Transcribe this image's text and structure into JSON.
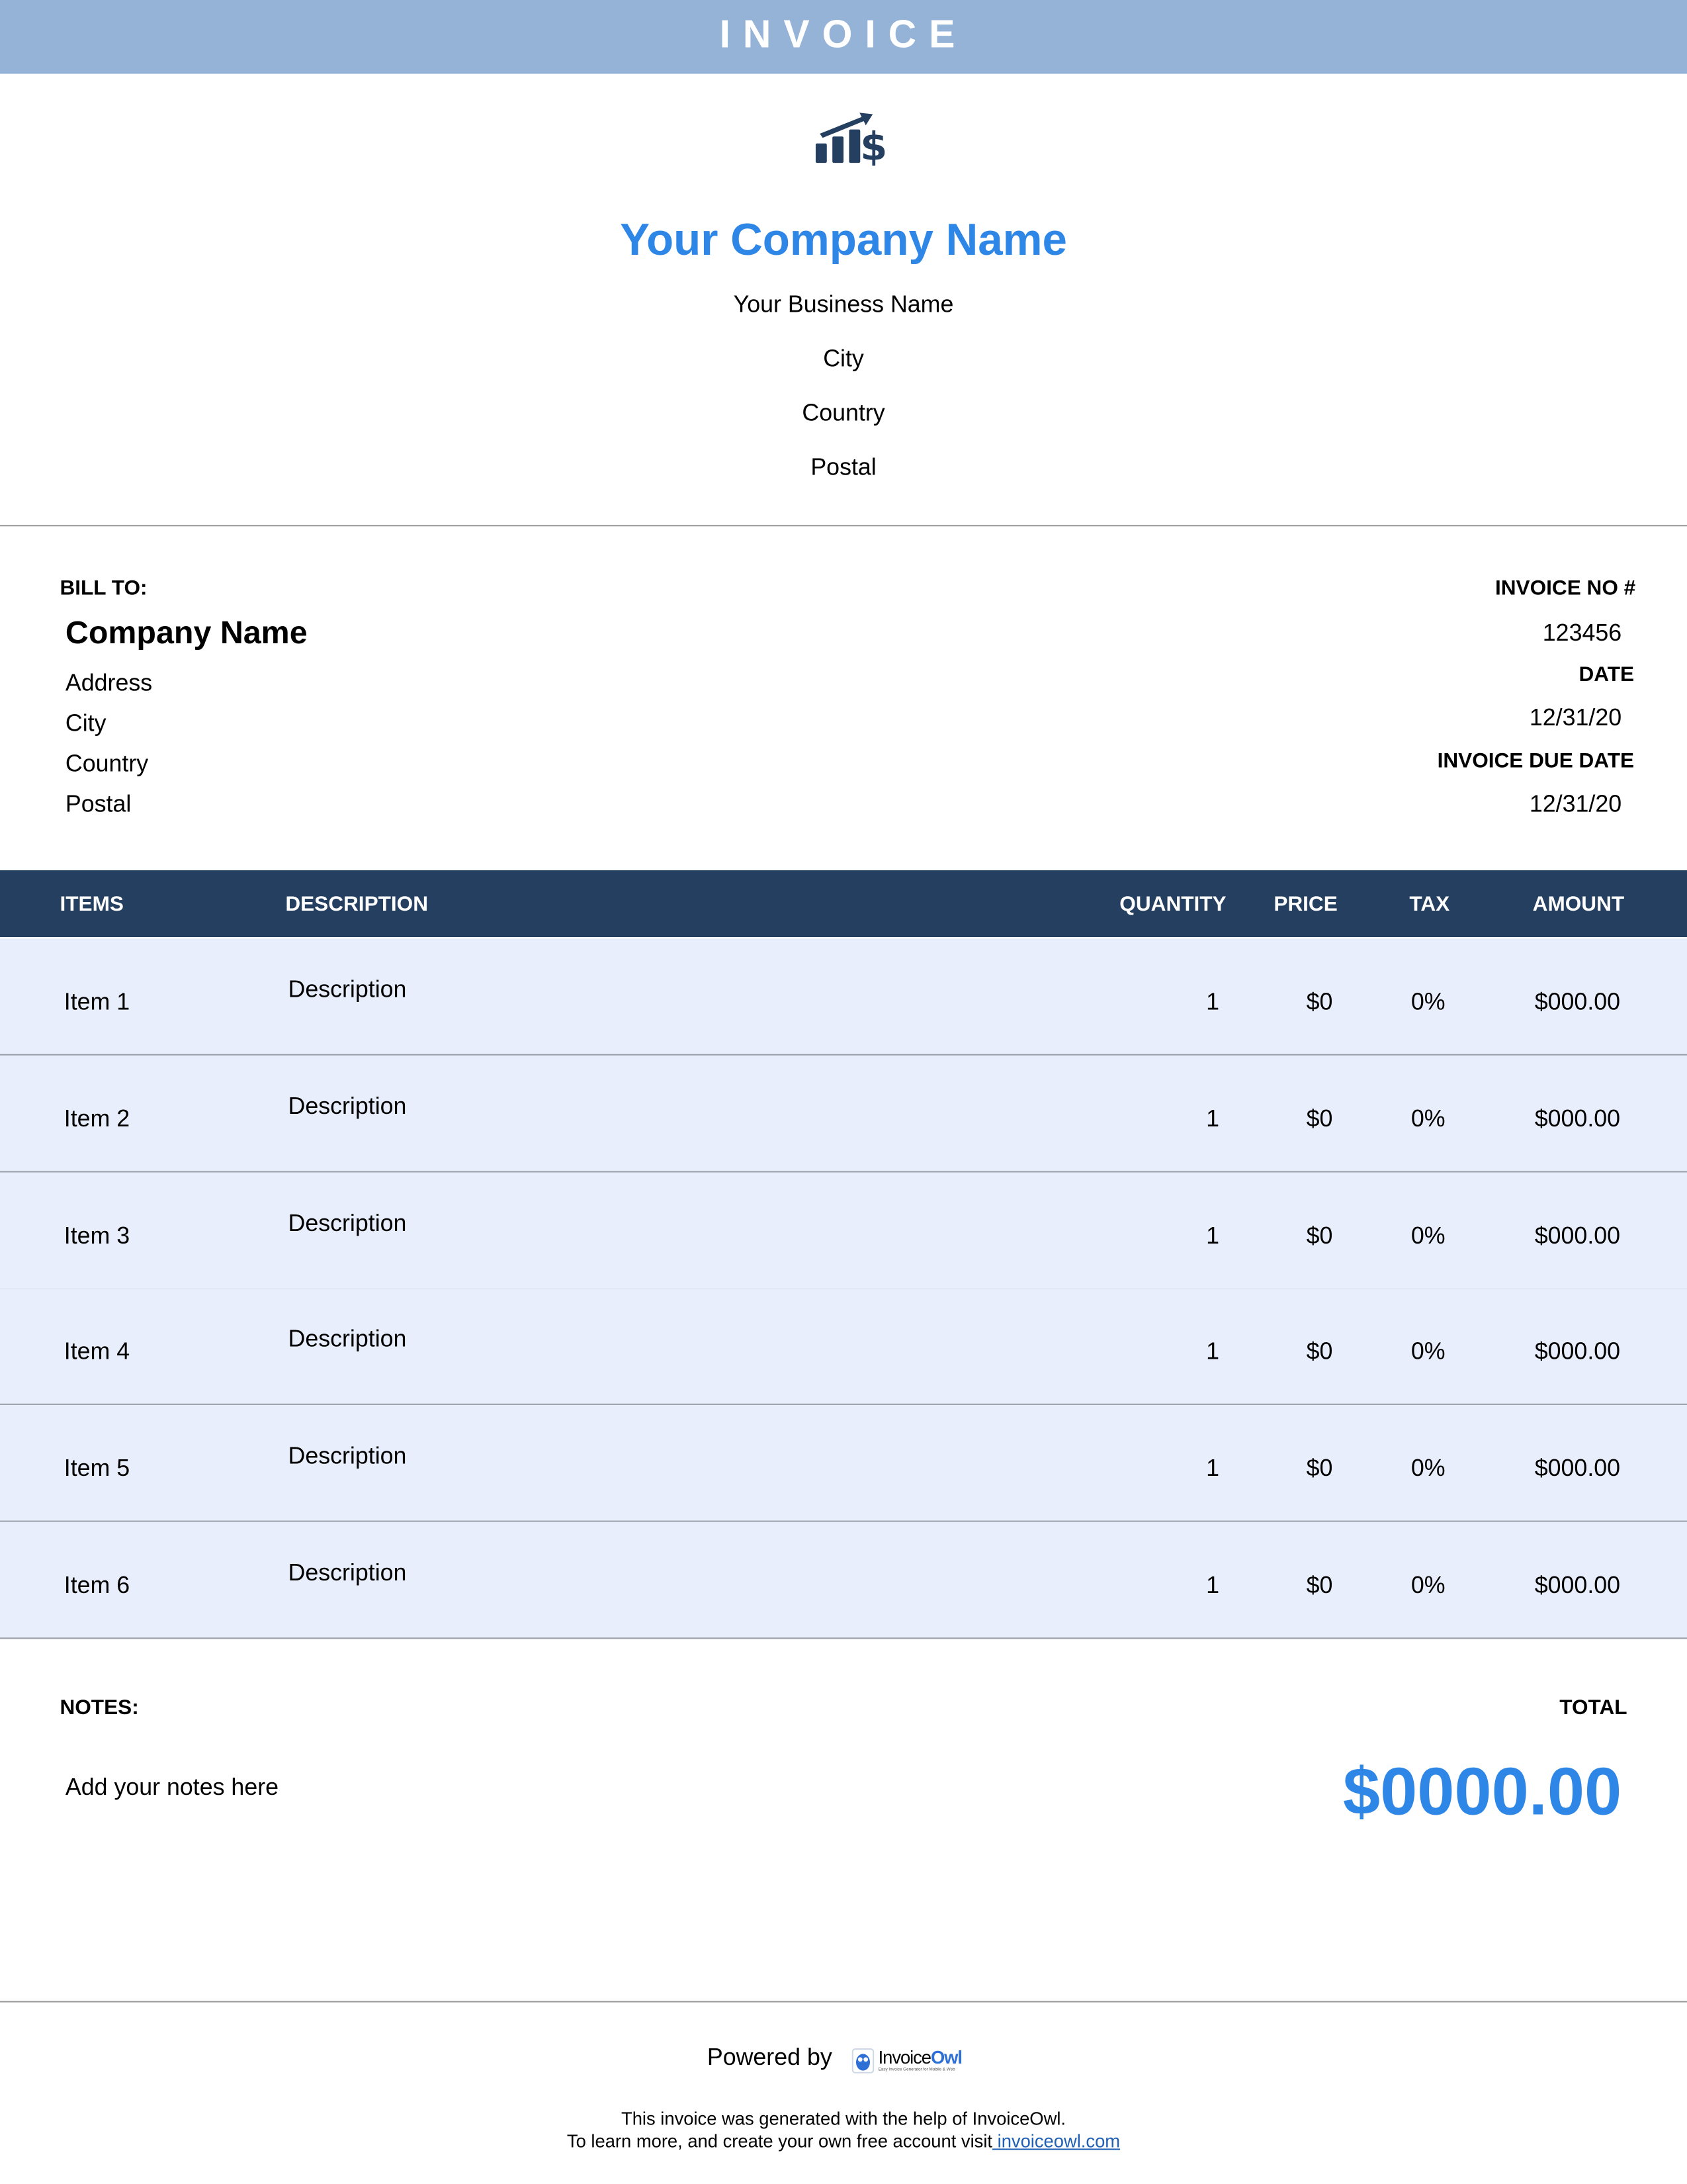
{
  "header": {
    "title": "INVOICE"
  },
  "company": {
    "logo_icon": "chart-growth-dollar-icon",
    "name": "Your Company Name",
    "business": "Your Business Name",
    "city": "City",
    "country": "Country",
    "postal": "Postal"
  },
  "bill_to": {
    "label": "BILL TO:",
    "company": "Company Name",
    "address": "Address",
    "city": "City",
    "country": "Country",
    "postal": "Postal"
  },
  "invoice_info": {
    "no_label": "INVOICE NO #",
    "no": "123456",
    "date_label": "DATE",
    "date": "12/31/20",
    "due_label": "INVOICE DUE DATE",
    "due": "12/31/20"
  },
  "table": {
    "headers": [
      "ITEMS",
      "DESCRIPTION",
      "QUANTITY",
      "PRICE",
      "TAX",
      "AMOUNT"
    ],
    "rows": [
      {
        "item": "Item 1",
        "description": "Description",
        "quantity": "1",
        "price": "$0",
        "tax": "0%",
        "amount": "$000.00"
      },
      {
        "item": "Item 2",
        "description": "Description",
        "quantity": "1",
        "price": "$0",
        "tax": "0%",
        "amount": "$000.00"
      },
      {
        "item": "Item 3",
        "description": "Description",
        "quantity": "1",
        "price": "$0",
        "tax": "0%",
        "amount": "$000.00"
      },
      {
        "item": "Item 4",
        "description": "Description",
        "quantity": "1",
        "price": "$0",
        "tax": "0%",
        "amount": "$000.00"
      },
      {
        "item": "Item 5",
        "description": "Description",
        "quantity": "1",
        "price": "$0",
        "tax": "0%",
        "amount": "$000.00"
      },
      {
        "item": "Item 6",
        "description": "Description",
        "quantity": "1",
        "price": "$0",
        "tax": "0%",
        "amount": "$000.00"
      }
    ]
  },
  "notes": {
    "label": "NOTES:",
    "text": "Add your notes here"
  },
  "total": {
    "label": "TOTAL",
    "value": "$0000.00"
  },
  "footer": {
    "powered_by": "Powered by",
    "brand_a": "Invoice",
    "brand_b": "Owl",
    "brand_tagline": "Easy Invoice Generator for Mobile & Web",
    "line1": "This invoice was generated with the help of InvoiceOwl.",
    "line2": "To learn more, and create your own free account visit",
    "link": " invoiceowl.com"
  },
  "colors": {
    "header_bar": "#94b3d7",
    "table_header": "#243f60",
    "row_bg": "#e8eefc",
    "accent": "#2e86e6"
  }
}
